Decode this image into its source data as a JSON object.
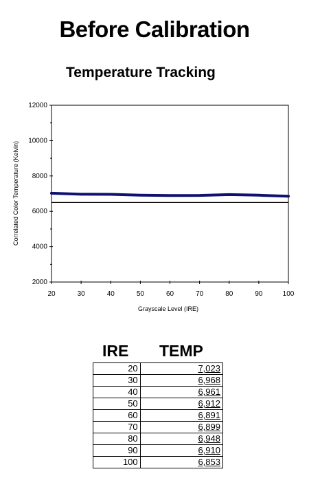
{
  "page": {
    "title": "Before Calibration",
    "subtitle": "Temperature Tracking"
  },
  "chart_data": {
    "type": "line",
    "title": "Temperature Tracking",
    "xlabel": "Grayscale Level (IRE)",
    "ylabel": "Correlated Color Temperature (Kelvin)",
    "xlim": [
      20,
      100
    ],
    "ylim": [
      2000,
      12000
    ],
    "x_ticks": [
      20,
      30,
      40,
      50,
      60,
      70,
      80,
      90,
      100
    ],
    "y_ticks": [
      2000,
      4000,
      6000,
      8000,
      10000,
      12000
    ],
    "reference_line": 6500,
    "grid": false,
    "line_color": "#0d1270",
    "x": [
      20,
      30,
      40,
      50,
      60,
      70,
      80,
      90,
      100
    ],
    "series": [
      {
        "values": [
          7023,
          6968,
          6961,
          6912,
          6891,
          6899,
          6948,
          6910,
          6853
        ]
      }
    ]
  },
  "table": {
    "headers": [
      "IRE",
      "TEMP"
    ],
    "rows": [
      [
        "20",
        "7,023"
      ],
      [
        "30",
        "6,968"
      ],
      [
        "40",
        "6,961"
      ],
      [
        "50",
        "6,912"
      ],
      [
        "60",
        "6,891"
      ],
      [
        "70",
        "6,899"
      ],
      [
        "80",
        "6,948"
      ],
      [
        "90",
        "6,910"
      ],
      [
        "100",
        "6,853"
      ]
    ]
  }
}
